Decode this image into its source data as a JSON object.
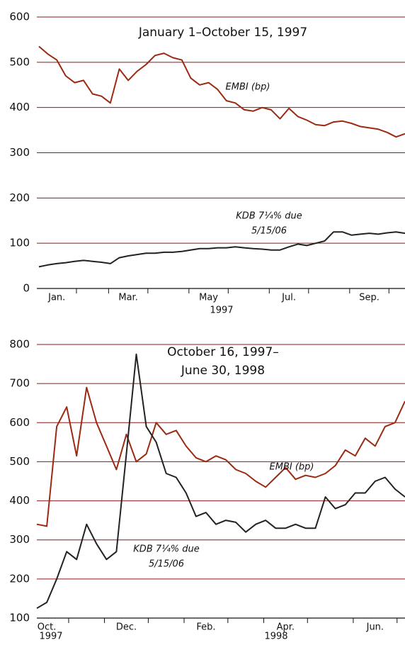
{
  "chart_data": [
    {
      "type": "line",
      "title": [
        "January 1–October 15, 1997"
      ],
      "categories": [
        null,
        null,
        "Jan.",
        null,
        null,
        null,
        null,
        null,
        null,
        null,
        "Mar.",
        null,
        null,
        null,
        null,
        null,
        null,
        null,
        null,
        "May",
        null,
        null,
        null,
        null,
        null,
        null,
        null,
        null,
        "Jul.",
        null,
        null,
        null,
        null,
        null,
        null,
        null,
        null,
        "Sep.",
        null,
        null,
        null,
        null
      ],
      "year_labels": [
        "1997"
      ],
      "annotations": [
        "EMBI (bp)",
        "KDB 7¼% due",
        "5/15/06"
      ],
      "series": [
        {
          "name": "EMBI (bp)",
          "color": "#9b2a12",
          "values": [
            535,
            518,
            505,
            470,
            455,
            460,
            430,
            425,
            410,
            485,
            460,
            480,
            495,
            515,
            520,
            510,
            505,
            465,
            450,
            455,
            440,
            415,
            410,
            395,
            392,
            400,
            395,
            375,
            398,
            380,
            372,
            362,
            360,
            368,
            370,
            365,
            358,
            355,
            352,
            345,
            335,
            342
          ]
        },
        {
          "name": "KDB 7¼% due 5/15/06",
          "color": "#222222",
          "values": [
            48,
            52,
            55,
            57,
            60,
            62,
            60,
            58,
            55,
            68,
            72,
            75,
            78,
            78,
            80,
            80,
            82,
            85,
            88,
            88,
            90,
            90,
            92,
            90,
            88,
            87,
            85,
            85,
            92,
            98,
            95,
            100,
            105,
            125,
            125,
            118,
            120,
            122,
            120,
            123,
            125,
            122
          ]
        }
      ],
      "ylim": [
        0,
        600
      ],
      "yticks": [
        0,
        100,
        200,
        300,
        400,
        500,
        600
      ],
      "grid": true,
      "grid_color": "#8b1a1a"
    },
    {
      "type": "line",
      "title": [
        "October 16, 1997–",
        "June 30, 1998"
      ],
      "categories": [
        null,
        "Oct.",
        null,
        null,
        null,
        null,
        null,
        null,
        null,
        "Dec.",
        null,
        null,
        null,
        null,
        null,
        null,
        null,
        "Feb.",
        null,
        null,
        null,
        null,
        null,
        null,
        null,
        "Apr.",
        null,
        null,
        null,
        null,
        null,
        null,
        null,
        null,
        "Jun.",
        null,
        null,
        null
      ],
      "year_labels": [
        "1997",
        "1998"
      ],
      "annotations": [
        "EMBI (bp)",
        "KDB 7¼% due",
        "5/15/06"
      ],
      "series": [
        {
          "name": "EMBI (bp)",
          "color": "#9b2a12",
          "values": [
            340,
            335,
            590,
            640,
            515,
            690,
            600,
            540,
            480,
            570,
            500,
            520,
            600,
            570,
            580,
            540,
            510,
            500,
            515,
            505,
            480,
            470,
            450,
            435,
            460,
            485,
            455,
            465,
            460,
            470,
            490,
            530,
            515,
            560,
            540,
            590,
            600,
            655
          ]
        },
        {
          "name": "KDB 7¼% due 5/15/06",
          "color": "#222222",
          "values": [
            125,
            140,
            200,
            270,
            250,
            340,
            290,
            250,
            270,
            520,
            775,
            590,
            550,
            470,
            460,
            420,
            360,
            370,
            340,
            350,
            345,
            320,
            340,
            350,
            330,
            330,
            340,
            330,
            330,
            410,
            380,
            390,
            420,
            420,
            450,
            460,
            430,
            410
          ]
        }
      ],
      "ylim": [
        100,
        800
      ],
      "yticks": [
        100,
        200,
        300,
        400,
        500,
        600,
        700,
        800
      ],
      "grid": true,
      "grid_color": "#8b1a1a"
    }
  ]
}
